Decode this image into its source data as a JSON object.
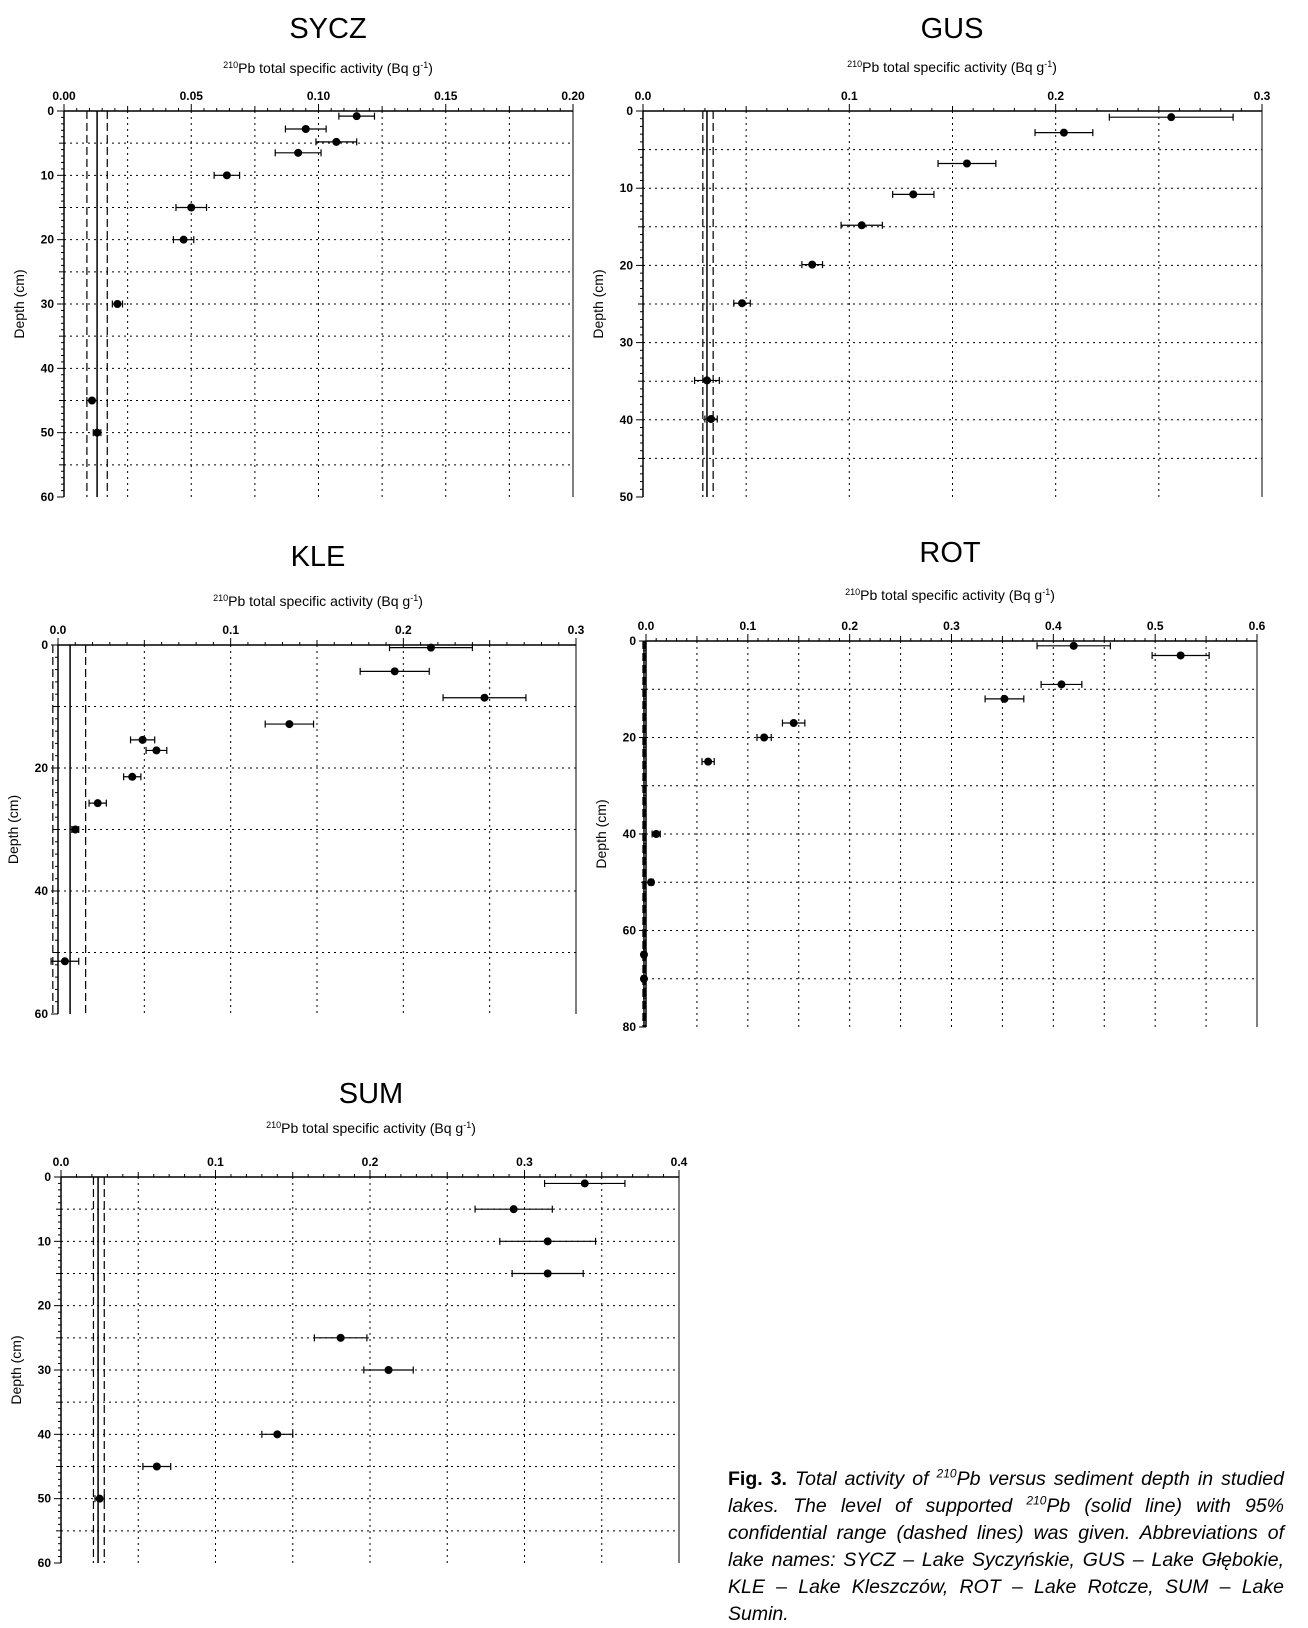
{
  "axis_title_prefix": "210",
  "axis_title_main": "Pb total specific activity (Bq g",
  "axis_title_exp": "-1",
  "axis_title_end": ")",
  "caption": {
    "fig_label": "Fig. 3.",
    "text_a": " Total activity of ",
    "sup_a": "210",
    "text_b": "Pb versus sediment depth in studied lakes. The level of supported ",
    "sup_b": "210",
    "text_c": "Pb (solid line) with 95% confidential range (dashed lines) was given. Abbreviations of lake names: SYCZ – Lake Syczyńskie, GUS – Lake Głębokie, KLE – Lake Kleszczów, ROT – Lake Rotcze, SUM – Lake Sumin."
  },
  "chart_data": [
    {
      "id": "sycz",
      "type": "scatter",
      "title": "SYCZ",
      "xlabel": "210Pb total specific activity (Bq g-1)",
      "ylabel": "Depth (cm)",
      "xlim": [
        0,
        0.2
      ],
      "ylim": [
        0,
        60
      ],
      "x_ticks": [
        "0.00",
        "0.05",
        "0.10",
        "0.15",
        "0.20"
      ],
      "y_ticks": [
        "0",
        "10",
        "20",
        "30",
        "40",
        "50",
        "60"
      ],
      "supported": {
        "value": 0.013,
        "lower": 0.009,
        "upper": 0.017
      },
      "points": [
        {
          "x": 0.115,
          "y": 0.8,
          "xerr": 0.007
        },
        {
          "x": 0.095,
          "y": 2.8,
          "xerr": 0.008
        },
        {
          "x": 0.107,
          "y": 4.8,
          "xerr": 0.008
        },
        {
          "x": 0.092,
          "y": 6.5,
          "xerr": 0.009
        },
        {
          "x": 0.064,
          "y": 10.0,
          "xerr": 0.005
        },
        {
          "x": 0.05,
          "y": 15.0,
          "xerr": 0.006
        },
        {
          "x": 0.047,
          "y": 20.0,
          "xerr": 0.004
        },
        {
          "x": 0.021,
          "y": 30.0,
          "xerr": 0.002
        },
        {
          "x": 0.011,
          "y": 45.0,
          "xerr": 0.002
        },
        {
          "x": 0.013,
          "y": 50.0,
          "xerr": 0.0015
        }
      ]
    },
    {
      "id": "gus",
      "type": "scatter",
      "title": "GUS",
      "xlabel": "210Pb total specific activity (Bq g-1)",
      "ylabel": "Depth (cm)",
      "xlim": [
        0,
        0.3
      ],
      "ylim": [
        0,
        50
      ],
      "x_ticks": [
        "0.0",
        "0.1",
        "0.2",
        "0.3"
      ],
      "y_ticks": [
        "0",
        "10",
        "20",
        "30",
        "40",
        "50"
      ],
      "supported": {
        "value": 0.031,
        "lower": 0.029,
        "upper": 0.034
      },
      "points": [
        {
          "x": 0.256,
          "y": 0.8,
          "xerr": 0.03
        },
        {
          "x": 0.204,
          "y": 2.8,
          "xerr": 0.014
        },
        {
          "x": 0.157,
          "y": 6.8,
          "xerr": 0.014
        },
        {
          "x": 0.131,
          "y": 10.8,
          "xerr": 0.01
        },
        {
          "x": 0.106,
          "y": 14.8,
          "xerr": 0.01
        },
        {
          "x": 0.082,
          "y": 19.9,
          "xerr": 0.005
        },
        {
          "x": 0.048,
          "y": 24.9,
          "xerr": 0.004
        },
        {
          "x": 0.031,
          "y": 34.9,
          "xerr": 0.006
        },
        {
          "x": 0.033,
          "y": 39.9,
          "xerr": 0.003
        }
      ]
    },
    {
      "id": "kle",
      "type": "scatter",
      "title": "KLE",
      "xlabel": "210Pb total specific activity (Bq g-1)",
      "ylabel": "Depth (cm)",
      "xlim": [
        0,
        0.3
      ],
      "ylim": [
        0,
        70
      ],
      "x_ticks": [
        "0.0",
        "0.1",
        "0.2",
        "0.3"
      ],
      "y_ticks": [
        "0",
        "20",
        "40",
        "60"
      ],
      "supported": {
        "value": 0.007,
        "lower": -0.003,
        "upper": 0.016
      },
      "points": [
        {
          "x": 0.216,
          "y": 0.5,
          "xerr": 0.024
        },
        {
          "x": 0.195,
          "y": 5.0,
          "xerr": 0.02
        },
        {
          "x": 0.247,
          "y": 10.0,
          "xerr": 0.024
        },
        {
          "x": 0.134,
          "y": 15.0,
          "xerr": 0.014
        },
        {
          "x": 0.049,
          "y": 18.0,
          "xerr": 0.007
        },
        {
          "x": 0.057,
          "y": 20.0,
          "xerr": 0.006
        },
        {
          "x": 0.043,
          "y": 25.0,
          "xerr": 0.005
        },
        {
          "x": 0.023,
          "y": 30.0,
          "xerr": 0.005
        },
        {
          "x": 0.01,
          "y": 35.0,
          "xerr": 0.002
        },
        {
          "x": 0.004,
          "y": 60.0,
          "xerr": 0.008
        }
      ]
    },
    {
      "id": "rot",
      "type": "scatter",
      "title": "ROT",
      "xlabel": "210Pb total specific activity (Bq g-1)",
      "ylabel": "Depth (cm)",
      "xlim": [
        0,
        0.6
      ],
      "ylim": [
        0,
        80
      ],
      "x_ticks": [
        "0.0",
        "0.1",
        "0.2",
        "0.3",
        "0.4",
        "0.5",
        "0.6"
      ],
      "y_ticks": [
        "0",
        "20",
        "40",
        "60",
        "80"
      ],
      "supported": {
        "value": -0.002,
        "lower": -0.003,
        "upper": -0.001
      },
      "points": [
        {
          "x": 0.42,
          "y": 1.0,
          "xerr": 0.036
        },
        {
          "x": 0.525,
          "y": 3.0,
          "xerr": 0.028
        },
        {
          "x": 0.408,
          "y": 9.0,
          "xerr": 0.02
        },
        {
          "x": 0.352,
          "y": 12.0,
          "xerr": 0.019
        },
        {
          "x": 0.145,
          "y": 17.0,
          "xerr": 0.011
        },
        {
          "x": 0.116,
          "y": 20.0,
          "xerr": 0.007
        },
        {
          "x": 0.061,
          "y": 25.0,
          "xerr": 0.006
        },
        {
          "x": 0.01,
          "y": 40.0,
          "xerr": 0.004
        },
        {
          "x": 0.005,
          "y": 50.0,
          "xerr": 0.002
        },
        {
          "x": -0.002,
          "y": 65.0,
          "xerr": 0.002
        },
        {
          "x": -0.002,
          "y": 70.0,
          "xerr": 0.002
        }
      ]
    },
    {
      "id": "sum",
      "type": "scatter",
      "title": "SUM",
      "xlabel": "210Pb total specific activity (Bq g-1)",
      "ylabel": "Depth (cm)",
      "xlim": [
        0,
        0.4
      ],
      "ylim": [
        0,
        60
      ],
      "x_ticks": [
        "0.0",
        "0.1",
        "0.2",
        "0.3",
        "0.4"
      ],
      "y_ticks": [
        "0",
        "10",
        "20",
        "30",
        "40",
        "50",
        "60"
      ],
      "supported": {
        "value": 0.024,
        "lower": 0.021,
        "upper": 0.028
      },
      "points": [
        {
          "x": 0.339,
          "y": 1.0,
          "xerr": 0.026
        },
        {
          "x": 0.293,
          "y": 5.0,
          "xerr": 0.025
        },
        {
          "x": 0.315,
          "y": 10.0,
          "xerr": 0.031
        },
        {
          "x": 0.315,
          "y": 15.0,
          "xerr": 0.023
        },
        {
          "x": 0.181,
          "y": 25.0,
          "xerr": 0.017
        },
        {
          "x": 0.212,
          "y": 30.0,
          "xerr": 0.016
        },
        {
          "x": 0.14,
          "y": 40.0,
          "xerr": 0.01
        },
        {
          "x": 0.062,
          "y": 45.0,
          "xerr": 0.009
        },
        {
          "x": 0.025,
          "y": 50.0,
          "xerr": 0.003
        }
      ]
    }
  ]
}
